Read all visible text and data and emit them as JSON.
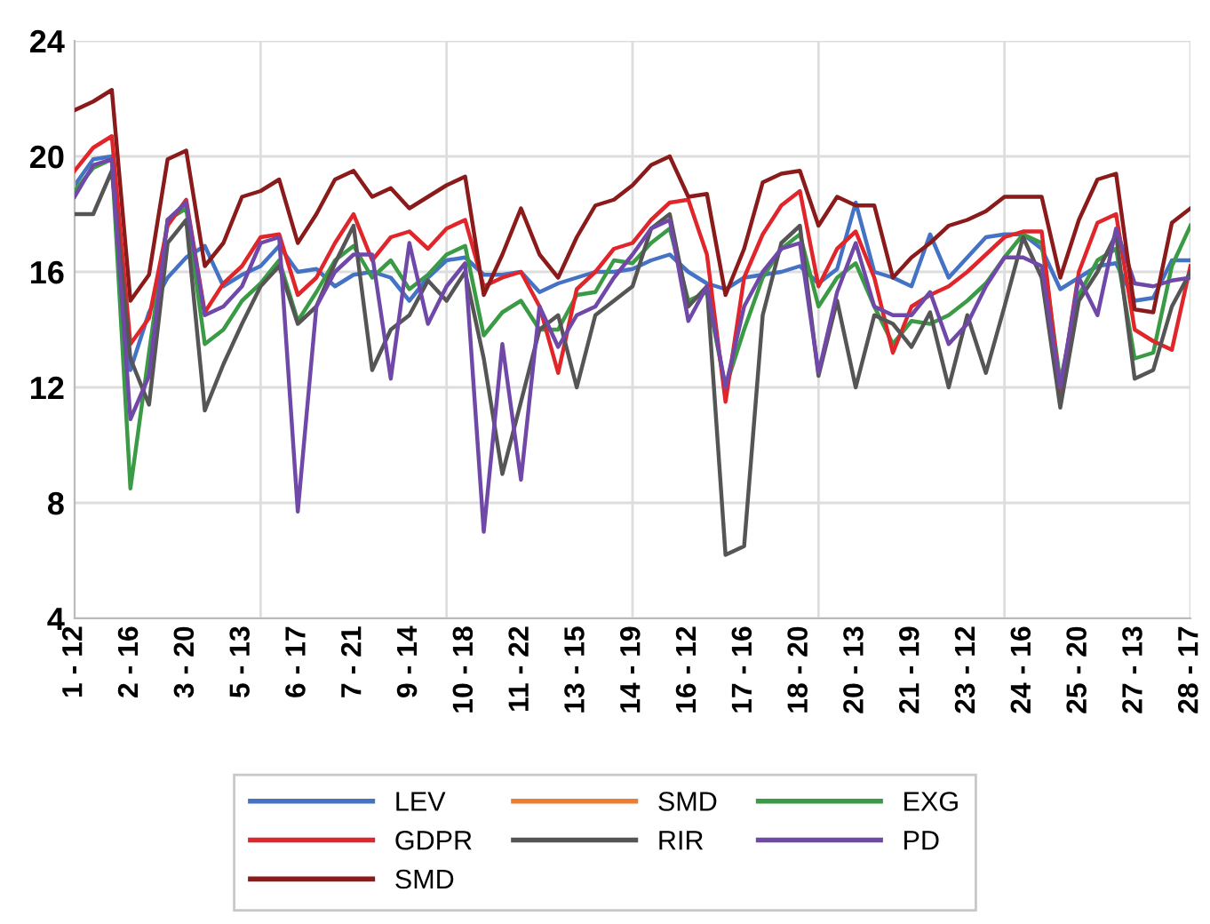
{
  "chart_data": {
    "type": "line",
    "categories": [
      "1 - 12",
      null,
      null,
      "2 - 16",
      null,
      null,
      "3 - 20",
      null,
      null,
      "5 - 13",
      null,
      null,
      "6 - 17",
      null,
      null,
      "7 - 21",
      null,
      null,
      "9 - 14",
      null,
      null,
      "10 - 18",
      null,
      null,
      "11 - 22",
      null,
      null,
      "13 - 15",
      null,
      null,
      "14 - 19",
      null,
      null,
      "16 - 12",
      null,
      null,
      "17 - 16",
      null,
      null,
      "18 - 20",
      null,
      null,
      "20 - 13",
      null,
      null,
      "21 - 19",
      null,
      null,
      "23 - 12",
      null,
      null,
      "24 - 16",
      null,
      null,
      "25 - 20",
      null,
      null,
      "27 - 13",
      null,
      null,
      "28 - 17"
    ],
    "series": [
      {
        "name": "LEV",
        "color": "#4472c4",
        "values": [
          19.0,
          19.9,
          20.0,
          12.6,
          14.6,
          15.8,
          16.5,
          16.9,
          15.5,
          15.9,
          16.2,
          16.9,
          16.0,
          16.1,
          15.5,
          15.9,
          16.0,
          15.8,
          15.0,
          15.8,
          16.4,
          16.5,
          15.9,
          15.9,
          16.0,
          15.3,
          15.6,
          15.8,
          16.0,
          16.0,
          16.1,
          16.4,
          16.6,
          16.0,
          15.6,
          15.4,
          15.8,
          15.9,
          16.0,
          16.2,
          15.6,
          16.1,
          18.4,
          16.0,
          15.8,
          15.5,
          17.3,
          15.8,
          16.5,
          17.2,
          17.3,
          17.3,
          16.8,
          15.4,
          15.8,
          16.2,
          16.3,
          15.0,
          15.1,
          16.4,
          16.4
        ]
      },
      {
        "name": "SMD",
        "color": "#ed7d31",
        "values": [
          null,
          null,
          null,
          null,
          null,
          null,
          null,
          null,
          null,
          null,
          null,
          null,
          null,
          null,
          null,
          null,
          null,
          null,
          null,
          null,
          null,
          null,
          null,
          null,
          null,
          null,
          null,
          null,
          null,
          null,
          null,
          null,
          null,
          null,
          null,
          null,
          null,
          null,
          null,
          null,
          null,
          null,
          null,
          null,
          null,
          null,
          null,
          null,
          null,
          null,
          null,
          null,
          null,
          null,
          null,
          null,
          null,
          null,
          null,
          null,
          null
        ]
      },
      {
        "name": "EXG",
        "color": "#3a9a45",
        "values": [
          18.8,
          19.6,
          19.9,
          8.5,
          13.2,
          17.8,
          18.2,
          13.5,
          14.0,
          15.0,
          15.6,
          16.4,
          14.3,
          15.3,
          16.4,
          16.9,
          15.8,
          16.4,
          15.4,
          15.9,
          16.6,
          16.9,
          13.8,
          14.6,
          15.0,
          14.0,
          14.0,
          15.2,
          15.3,
          16.4,
          16.3,
          17.0,
          17.5,
          15.0,
          15.3,
          12.0,
          14.0,
          15.8,
          16.8,
          17.3,
          14.8,
          15.8,
          16.3,
          14.8,
          13.5,
          14.3,
          14.2,
          14.5,
          15.0,
          15.6,
          16.5,
          17.3,
          17.0,
          12.2,
          15.2,
          16.4,
          16.8,
          13.0,
          13.2,
          16.2,
          17.6
        ]
      },
      {
        "name": "GDPR",
        "color": "#e0262b",
        "values": [
          19.5,
          20.3,
          20.7,
          13.5,
          14.4,
          17.6,
          18.5,
          14.6,
          15.6,
          16.2,
          17.2,
          17.3,
          15.2,
          15.8,
          17.0,
          18.0,
          16.4,
          17.2,
          17.4,
          16.8,
          17.5,
          17.8,
          15.5,
          15.8,
          16.0,
          14.8,
          12.5,
          15.4,
          16.0,
          16.8,
          17.0,
          17.8,
          18.4,
          18.5,
          16.6,
          11.5,
          15.8,
          17.3,
          18.3,
          18.8,
          15.5,
          16.8,
          17.4,
          15.8,
          13.2,
          14.8,
          15.2,
          15.5,
          16.0,
          16.6,
          17.2,
          17.4,
          17.4,
          11.8,
          16.0,
          17.7,
          18.0,
          14.0,
          13.6,
          13.3,
          16.2
        ]
      },
      {
        "name": "RIR",
        "color": "#555555",
        "values": [
          18.0,
          18.0,
          19.5,
          13.0,
          11.4,
          17.0,
          17.8,
          11.2,
          12.8,
          14.2,
          15.5,
          16.2,
          14.2,
          14.8,
          16.3,
          17.6,
          12.6,
          14.0,
          14.5,
          15.7,
          15.0,
          16.0,
          13.0,
          9.0,
          11.5,
          14.0,
          14.5,
          12.0,
          14.5,
          15.0,
          15.5,
          17.5,
          18.0,
          14.8,
          15.5,
          6.2,
          6.5,
          14.5,
          17.0,
          17.6,
          12.4,
          15.0,
          12.0,
          14.5,
          14.2,
          13.4,
          14.6,
          12.0,
          14.5,
          12.5,
          14.8,
          17.2,
          15.8,
          11.3,
          15.0,
          16.0,
          17.3,
          12.3,
          12.6,
          14.8,
          16.0
        ]
      },
      {
        "name": "PD",
        "color": "#7048a8",
        "values": [
          18.6,
          19.7,
          19.9,
          10.9,
          12.4,
          17.8,
          18.4,
          14.5,
          14.8,
          15.5,
          17.0,
          17.2,
          7.7,
          14.8,
          16.0,
          16.6,
          16.6,
          12.3,
          17.0,
          14.2,
          15.5,
          16.3,
          7.0,
          13.5,
          8.8,
          14.8,
          13.4,
          14.5,
          14.8,
          15.8,
          16.6,
          17.5,
          17.8,
          14.3,
          15.5,
          12.0,
          14.8,
          16.0,
          16.8,
          17.0,
          12.5,
          15.3,
          17.0,
          14.8,
          14.5,
          14.5,
          15.3,
          13.5,
          14.2,
          15.5,
          16.5,
          16.5,
          16.2,
          12.0,
          15.8,
          14.5,
          17.5,
          15.6,
          15.5,
          15.7,
          15.8
        ]
      },
      {
        "name": "SMD",
        "color": "#8b1a1a",
        "values": [
          21.6,
          21.9,
          22.3,
          15.0,
          15.9,
          19.9,
          20.2,
          16.2,
          17.0,
          18.6,
          18.8,
          19.2,
          17.0,
          18.0,
          19.2,
          19.5,
          18.6,
          18.9,
          18.2,
          18.6,
          19.0,
          19.3,
          15.2,
          16.6,
          18.2,
          16.6,
          15.8,
          17.2,
          18.3,
          18.5,
          19.0,
          19.7,
          20.0,
          18.6,
          18.7,
          15.2,
          16.8,
          19.1,
          19.4,
          19.5,
          17.6,
          18.6,
          18.3,
          18.3,
          15.8,
          16.5,
          17.0,
          17.6,
          17.8,
          18.1,
          18.6,
          18.6,
          18.6,
          15.8,
          17.8,
          19.2,
          19.4,
          14.7,
          14.6,
          17.7,
          18.2
        ]
      }
    ],
    "ylim": [
      4,
      24
    ],
    "yticks": [
      4,
      8,
      12,
      16,
      20,
      24
    ],
    "grid": true,
    "legend": "bottom",
    "line_style": "solid",
    "marker": "none"
  }
}
